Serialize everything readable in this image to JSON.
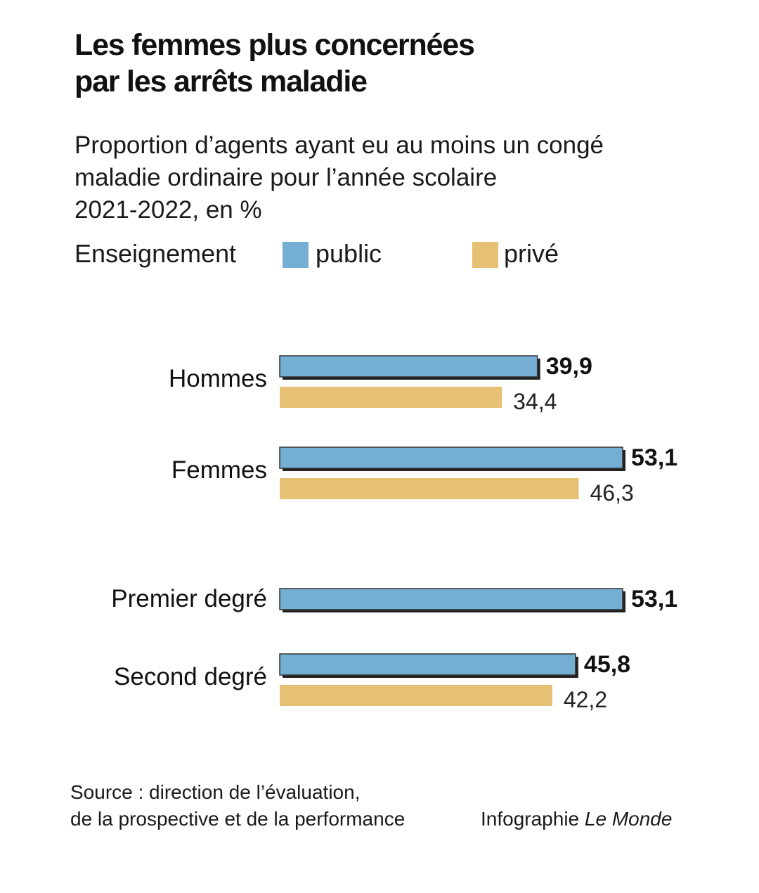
{
  "title_lines": [
    "Les femmes plus concernées",
    "par les arrêts maladie"
  ],
  "subtitle_lines": [
    "Proportion d’agents ayant eu au moins un congé",
    "maladie ordinaire pour l’année scolaire",
    "2021-2022, en %"
  ],
  "legend": {
    "title": "Enseignement",
    "items": [
      {
        "label": "public",
        "color": "#74aed3"
      },
      {
        "label": "privé",
        "color": "#e6c173"
      }
    ]
  },
  "chart_data": {
    "type": "bar",
    "orientation": "horizontal",
    "categories": [
      "Hommes",
      "Femmes",
      "Premier degré",
      "Second degré"
    ],
    "series": [
      {
        "name": "public",
        "values": [
          39.9,
          53.1,
          53.1,
          45.8
        ],
        "labels": [
          "39,9",
          "53,1",
          "53,1",
          "45,8"
        ]
      },
      {
        "name": "privé",
        "values": [
          34.4,
          46.3,
          null,
          42.2
        ],
        "labels": [
          "34,4",
          "46,3",
          "",
          "42,2"
        ]
      }
    ],
    "xlim": [
      0,
      55
    ],
    "grid": false,
    "legend_position": "top-left"
  },
  "source_lines": [
    "Source : direction de l’évaluation,",
    "de la prospective et de la performance"
  ],
  "credit": {
    "prefix": "Infographie",
    "brand": "Le Monde"
  }
}
